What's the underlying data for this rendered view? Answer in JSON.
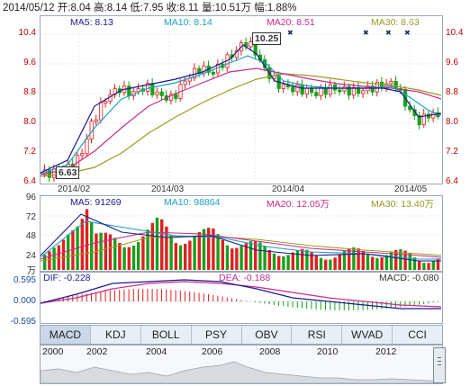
{
  "header": {
    "summary": "2014/05/12 开:8.04  高:8.14  低:7.95  收:8.11  量:10.51万  幅:1.88%"
  },
  "price_panel": {
    "ma": [
      {
        "label": "MA5: 8.13",
        "color": "#1a1a8c"
      },
      {
        "label": "MA10: 8.14",
        "color": "#1aa0c0"
      },
      {
        "label": "MA20: 8.51",
        "color": "#cc2a8a"
      },
      {
        "label": "MA30: 8.63",
        "color": "#9a9a20"
      }
    ],
    "y_ticks": [
      "10.4",
      "9.6",
      "8.8",
      "8.0",
      "7.2",
      "6.4"
    ],
    "high_callout": "10.25",
    "low_callout": "6.63"
  },
  "dates": [
    "2014/02",
    "2014/03",
    "2014/04",
    "2014/05"
  ],
  "volume_panel": {
    "ma": [
      {
        "label": "MA5: 91269",
        "color": "#1a1a8c"
      },
      {
        "label": "MA10: 98864",
        "color": "#1aa0c0"
      },
      {
        "label": "MA20: 12.05万",
        "color": "#cc2a8a"
      },
      {
        "label": "MA30: 13.40万",
        "color": "#9a9a20"
      }
    ],
    "y_ticks": [
      "96",
      "72",
      "48",
      "24"
    ],
    "unit": "万"
  },
  "macd_panel": {
    "dif": "DIF: -0.228",
    "dea": "DEA: -0.188",
    "macd": "MACD: -0.080",
    "y_ticks": [
      "0.595",
      "0.000",
      "-0.595"
    ]
  },
  "tabs": [
    "MACD",
    "KDJ",
    "BOLL",
    "PSY",
    "OBV",
    "RSI",
    "WVAD",
    "CCI"
  ],
  "years": [
    "2000",
    "2002",
    "2004",
    "2006",
    "2008",
    "2010",
    "2012"
  ],
  "colors": {
    "up": "#e02020",
    "down": "#18a018",
    "axis": "#c00000"
  }
}
